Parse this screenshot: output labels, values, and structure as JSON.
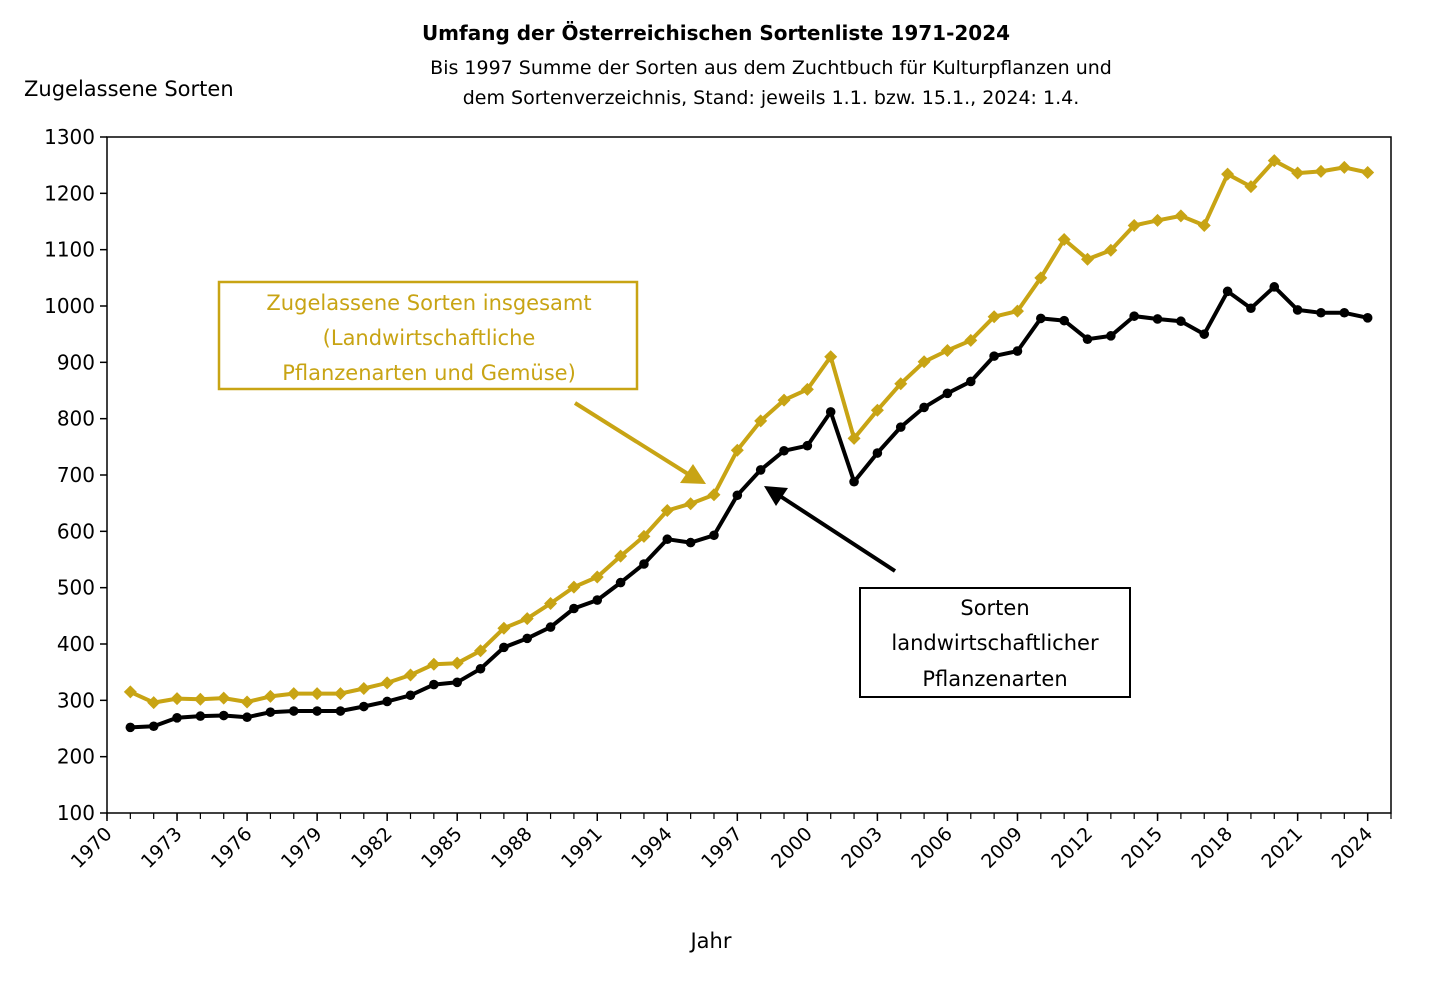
{
  "chart_data": {
    "type": "line",
    "title": "Umfang der Österreichischen Sortenliste 1971-2024",
    "subtitle_lines": [
      "Bis 1997 Summe der Sorten aus dem Zuchtbuch für Kulturpflanzen und",
      "dem Sortenverzeichnis, Stand: jeweils 1.1. bzw. 15.1., 2024: 1.4."
    ],
    "ylabel": "Zugelassene Sorten",
    "xlabel": "Jahr",
    "xlim": [
      1970,
      2025
    ],
    "ylim": [
      100,
      1300
    ],
    "xticks": [
      1970,
      1973,
      1976,
      1979,
      1982,
      1985,
      1988,
      1991,
      1994,
      1997,
      2000,
      2003,
      2006,
      2009,
      2012,
      2015,
      2018,
      2021,
      2024
    ],
    "yticks": [
      100,
      200,
      300,
      400,
      500,
      600,
      700,
      800,
      900,
      1000,
      1100,
      1200,
      1300
    ],
    "grid": false,
    "x": [
      1971,
      1972,
      1973,
      1974,
      1975,
      1976,
      1977,
      1978,
      1979,
      1980,
      1981,
      1982,
      1983,
      1984,
      1985,
      1986,
      1987,
      1988,
      1989,
      1990,
      1991,
      1992,
      1993,
      1994,
      1995,
      1996,
      1997,
      1998,
      1999,
      2000,
      2001,
      2002,
      2003,
      2004,
      2005,
      2006,
      2007,
      2008,
      2009,
      2010,
      2011,
      2012,
      2013,
      2014,
      2015,
      2016,
      2017,
      2018,
      2019,
      2020,
      2021,
      2022,
      2023,
      2024
    ],
    "series": [
      {
        "color": "#C8A414",
        "marker": "diamond",
        "values": [
          315,
          296,
          303,
          302,
          304,
          297,
          307,
          312,
          312,
          312,
          321,
          331,
          345,
          364,
          366,
          388,
          428,
          445,
          472,
          501,
          519,
          556,
          591,
          637,
          649,
          665,
          744,
          796,
          833,
          852,
          910,
          765,
          815,
          862,
          901,
          921,
          939,
          981,
          991,
          1050,
          1118,
          1083,
          1099,
          1143,
          1152,
          1160,
          1143,
          1234,
          1212,
          1258,
          1236,
          1239,
          1246,
          1237
        ]
      },
      {
        "color": "#000000",
        "marker": "circle",
        "values": [
          252,
          254,
          269,
          272,
          273,
          270,
          279,
          281,
          281,
          281,
          289,
          298,
          309,
          328,
          332,
          356,
          394,
          410,
          430,
          463,
          478,
          509,
          542,
          586,
          580,
          593,
          664,
          709,
          743,
          752,
          812,
          688,
          739,
          785,
          820,
          845,
          866,
          911,
          920,
          978,
          974,
          941,
          947,
          982,
          977,
          973,
          950,
          1026,
          996,
          1034,
          993,
          988,
          988,
          979
        ]
      }
    ],
    "annotations": [
      {
        "lines": [
          "Zugelassene Sorten insgesamt",
          "(Landwirtschaftliche",
          "Pflanzenarten und Gemüse)"
        ],
        "color": "#C8A414"
      },
      {
        "lines": [
          "Sorten",
          "landwirtschaftlicher",
          "Pflanzenarten"
        ],
        "color": "#000000"
      }
    ]
  }
}
